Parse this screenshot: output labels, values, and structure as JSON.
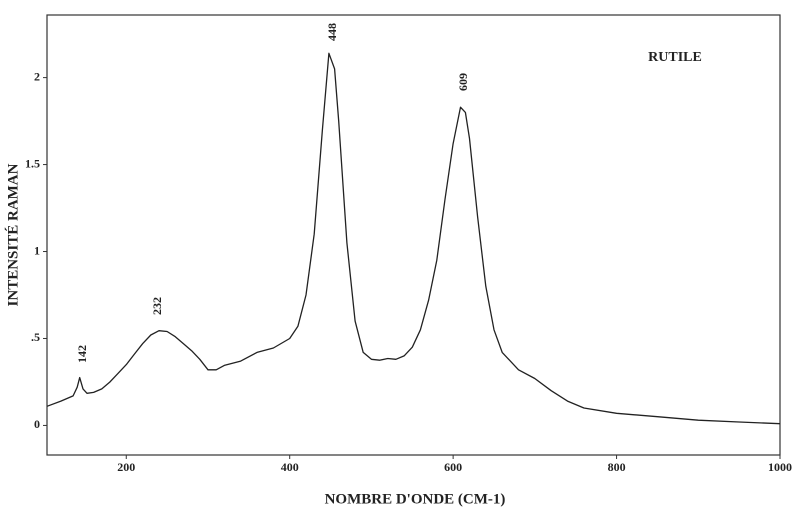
{
  "chart_data": {
    "type": "line",
    "title": "RUTILE",
    "x_label": "NOMBRE D'ONDE (CM-1)",
    "y_label": "INTENSITÉ RAMAN",
    "annotations": [
      "142",
      "232",
      "448",
      "609"
    ],
    "x": [
      103,
      120,
      135,
      140,
      143,
      147,
      152,
      160,
      170,
      180,
      190,
      200,
      210,
      220,
      230,
      240,
      250,
      260,
      270,
      280,
      290,
      300,
      310,
      320,
      340,
      360,
      380,
      400,
      410,
      420,
      430,
      440,
      448,
      455,
      460,
      470,
      480,
      490,
      500,
      510,
      520,
      530,
      540,
      550,
      560,
      570,
      580,
      590,
      600,
      609,
      615,
      620,
      630,
      640,
      650,
      660,
      680,
      700,
      720,
      740,
      760,
      800,
      850,
      900,
      950,
      1000
    ],
    "series": [
      {
        "name": "Rutile",
        "color": "#222222",
        "values": [
          0.11,
          0.14,
          0.17,
          0.22,
          0.275,
          0.21,
          0.185,
          0.19,
          0.21,
          0.25,
          0.3,
          0.35,
          0.41,
          0.47,
          0.52,
          0.545,
          0.54,
          0.51,
          0.47,
          0.43,
          0.38,
          0.32,
          0.32,
          0.345,
          0.37,
          0.42,
          0.445,
          0.5,
          0.57,
          0.75,
          1.1,
          1.7,
          2.14,
          2.05,
          1.75,
          1.05,
          0.6,
          0.42,
          0.38,
          0.375,
          0.385,
          0.38,
          0.4,
          0.45,
          0.55,
          0.72,
          0.95,
          1.3,
          1.62,
          1.83,
          1.8,
          1.65,
          1.2,
          0.8,
          0.55,
          0.42,
          0.32,
          0.27,
          0.2,
          0.14,
          0.1,
          0.07,
          0.05,
          0.03,
          0.02,
          0.01
        ]
      }
    ],
    "xlim": [
      103,
      1000
    ],
    "ylim": [
      -0.17,
      2.36
    ],
    "xticks": [
      200,
      400,
      600,
      800,
      1000
    ],
    "yticks": [
      0,
      {
        "value": 0.5,
        "label": ".5"
      },
      1,
      1.5,
      2
    ]
  }
}
